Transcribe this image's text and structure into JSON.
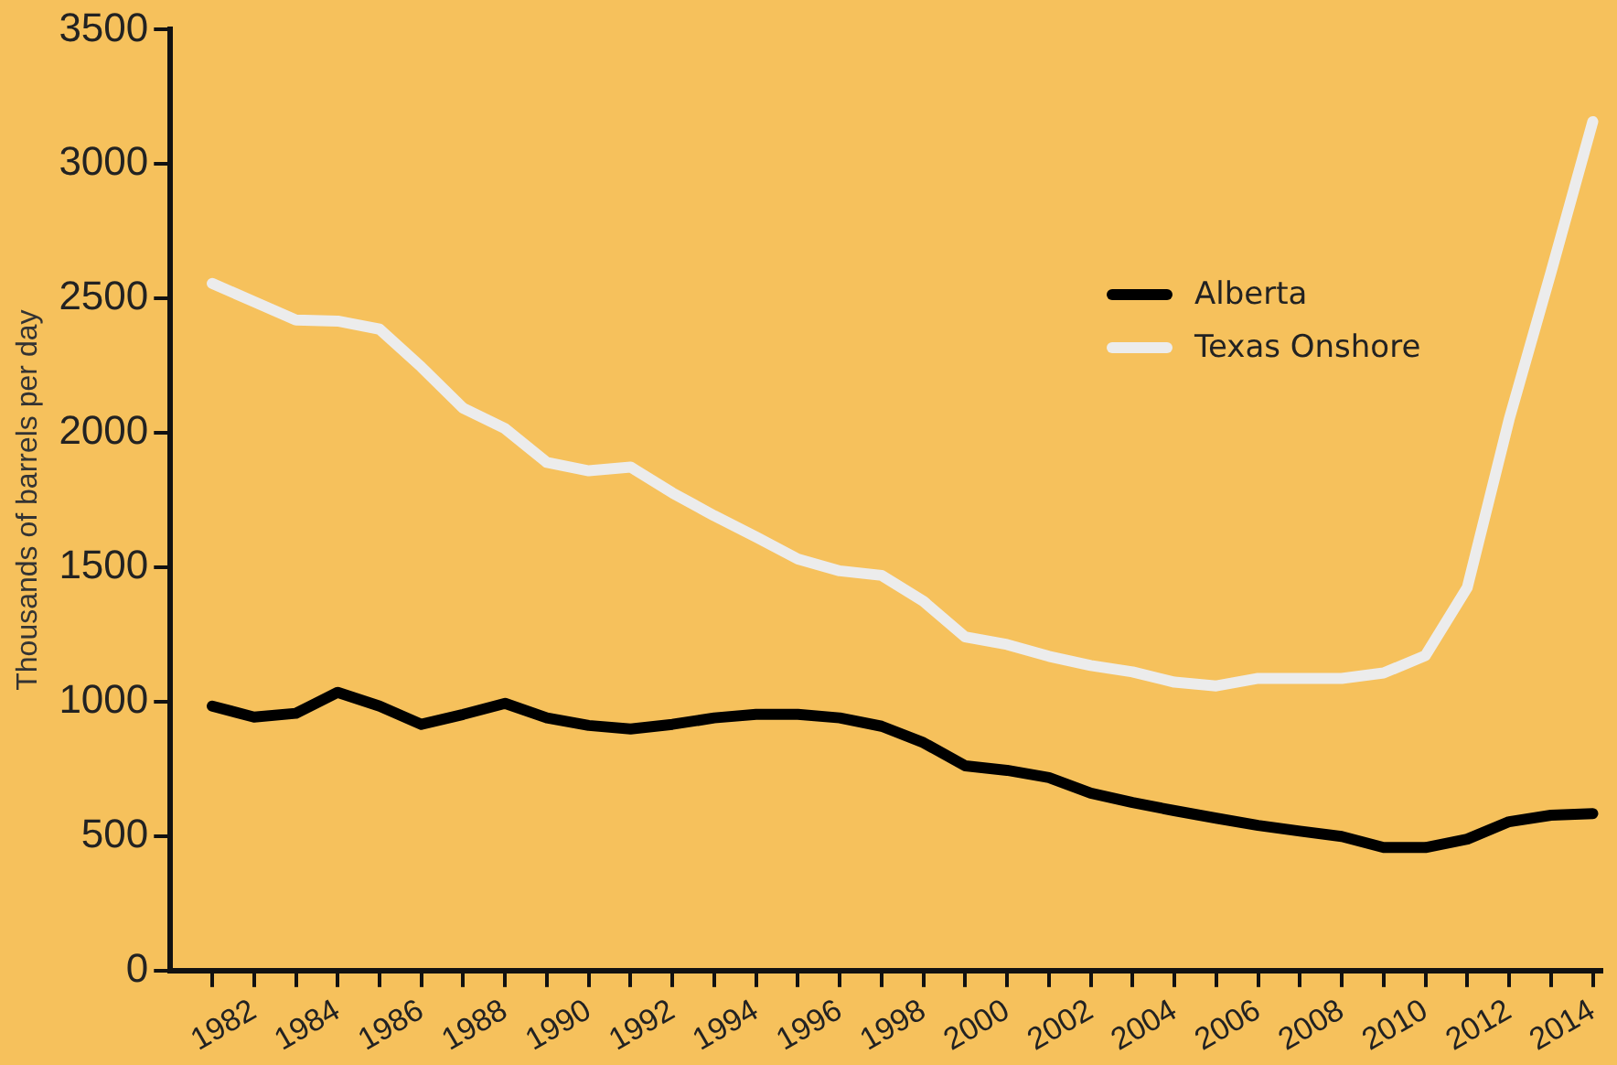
{
  "chart_data": {
    "type": "line",
    "ylabel": "Thousands of barrels per day",
    "x": [
      1981,
      1982,
      1983,
      1984,
      1985,
      1986,
      1987,
      1988,
      1989,
      1990,
      1991,
      1992,
      1993,
      1994,
      1995,
      1996,
      1997,
      1998,
      1999,
      2000,
      2001,
      2002,
      2003,
      2004,
      2005,
      2006,
      2007,
      2008,
      2009,
      2010,
      2011,
      2012,
      2013,
      2014
    ],
    "series": [
      {
        "name": "Alberta",
        "color": "#000000",
        "values": [
          984,
          943,
          957,
          1035,
          984,
          916,
          953,
          994,
          940,
          912,
          899,
          916,
          940,
          953,
          953,
          940,
          909,
          848,
          762,
          745,
          718,
          660,
          625,
          595,
          567,
          540,
          519,
          499,
          458,
          458,
          489,
          554,
          578,
          584
        ]
      },
      {
        "name": "Texas Onshore",
        "color": "#ececec",
        "values": [
          2556,
          2488,
          2420,
          2416,
          2386,
          2245,
          2092,
          2016,
          1890,
          1859,
          1873,
          1777,
          1692,
          1613,
          1531,
          1487,
          1470,
          1374,
          1241,
          1213,
          1169,
          1135,
          1111,
          1073,
          1059,
          1087,
          1087,
          1087,
          1107,
          1172,
          1425,
          2050,
          2597,
          3158
        ]
      }
    ],
    "xlim": [
      1980,
      2014.2
    ],
    "xticks": [
      {
        "value": 1981,
        "label": null
      },
      1982,
      {
        "value": 1983,
        "label": null
      },
      1984,
      {
        "value": 1985,
        "label": null
      },
      1986,
      {
        "value": 1987,
        "label": null
      },
      1988,
      {
        "value": 1989,
        "label": null
      },
      1990,
      {
        "value": 1991,
        "label": null
      },
      1992,
      {
        "value": 1993,
        "label": null
      },
      1994,
      {
        "value": 1995,
        "label": null
      },
      1996,
      {
        "value": 1997,
        "label": null
      },
      1998,
      {
        "value": 1999,
        "label": null
      },
      2000,
      {
        "value": 2001,
        "label": null
      },
      2002,
      {
        "value": 2003,
        "label": null
      },
      2004,
      {
        "value": 2005,
        "label": null
      },
      2006,
      {
        "value": 2007,
        "label": null
      },
      2008,
      {
        "value": 2009,
        "label": null
      },
      2010,
      {
        "value": 2011,
        "label": null
      },
      2012,
      {
        "value": 2013,
        "label": null
      },
      2014
    ],
    "ylim": [
      0,
      3500
    ],
    "yticks": [
      0,
      500,
      1000,
      1500,
      2000,
      2500,
      3000,
      3500
    ],
    "grid": false,
    "legend": "top right",
    "marker": "none",
    "line_style": "solid"
  }
}
